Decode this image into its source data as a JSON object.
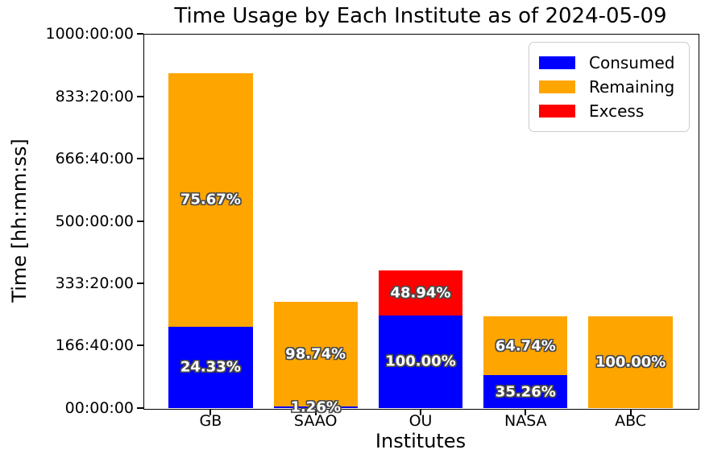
{
  "chart_data": {
    "type": "bar",
    "stacked": true,
    "title": "Time Usage by Each Institute as of 2024-05-09",
    "xlabel": "Institutes",
    "ylabel": "Time [hh:mm:ss]",
    "ylim": [
      0,
      1000
    ],
    "y_unit": "hours",
    "grid": false,
    "legend_position": "upper right",
    "y_ticks": [
      {
        "value": 0,
        "label": "00:00:00"
      },
      {
        "value": 166.6667,
        "label": "166:40:00"
      },
      {
        "value": 333.3333,
        "label": "333:20:00"
      },
      {
        "value": 500,
        "label": "500:00:00"
      },
      {
        "value": 666.6667,
        "label": "666:40:00"
      },
      {
        "value": 833.3333,
        "label": "833:20:00"
      },
      {
        "value": 1000,
        "label": "1000:00:00"
      }
    ],
    "categories": [
      "GB",
      "SAAO",
      "OU",
      "NASA",
      "ABC"
    ],
    "colors": {
      "consumed": "#0000ff",
      "remaining": "#ffa500",
      "excess": "#ff0000"
    },
    "legend": [
      {
        "label": "Consumed",
        "color": "#0000ff"
      },
      {
        "label": "Remaining",
        "color": "#ffa500"
      },
      {
        "label": "Excess",
        "color": "#ff0000"
      }
    ],
    "bars": [
      {
        "category": "GB",
        "segments": [
          {
            "series": "consumed",
            "hours": 218.2,
            "label": "24.33%"
          },
          {
            "series": "remaining",
            "hours": 678.4,
            "label": "75.67%"
          }
        ]
      },
      {
        "category": "SAAO",
        "segments": [
          {
            "series": "consumed",
            "hours": 3.6,
            "label": "1.26%"
          },
          {
            "series": "remaining",
            "hours": 283.0,
            "label": "98.74%"
          }
        ]
      },
      {
        "category": "OU",
        "segments": [
          {
            "series": "consumed",
            "hours": 248.0,
            "label": "100.00%"
          },
          {
            "series": "excess",
            "hours": 121.4,
            "label": "48.94%"
          }
        ]
      },
      {
        "category": "NASA",
        "segments": [
          {
            "series": "consumed",
            "hours": 87.4,
            "label": "35.26%"
          },
          {
            "series": "remaining",
            "hours": 160.6,
            "label": "64.74%"
          }
        ]
      },
      {
        "category": "ABC",
        "segments": [
          {
            "series": "remaining",
            "hours": 245.7,
            "label": "100.00%"
          }
        ]
      }
    ]
  }
}
